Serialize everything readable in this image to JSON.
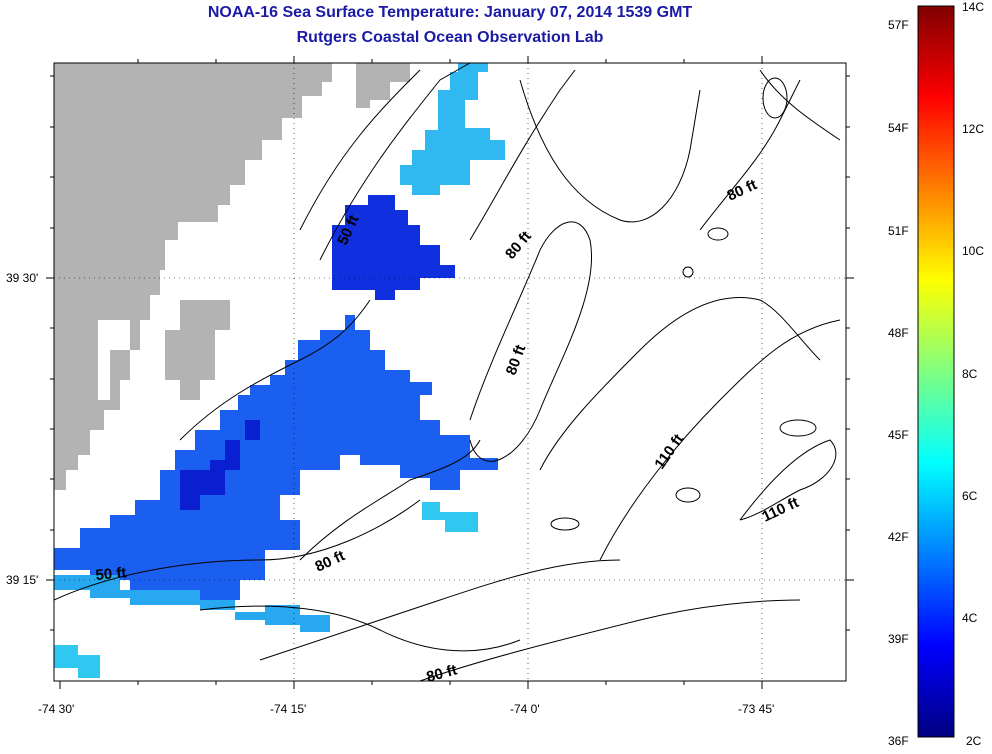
{
  "header": {
    "title": "NOAA-16 Sea Surface Temperature:  January 07, 2014 1539 GMT",
    "subtitle": "Rutgers Coastal Ocean Observation Lab"
  },
  "axes": {
    "x_ticks": [
      "-74 30'",
      "-74 15'",
      "-74 0'",
      "-73 45'"
    ],
    "y_ticks": [
      "39 30'",
      "39 15'"
    ]
  },
  "contour_labels": [
    "50 ft",
    "80 ft",
    "80 ft",
    "80 ft",
    "110 ft",
    "110 ft",
    "80 ft",
    "50 ft",
    "80 ft"
  ],
  "colorbar": {
    "fahrenheit": [
      "57F",
      "54F",
      "51F",
      "48F",
      "45F",
      "42F",
      "39F",
      "36F"
    ],
    "celsius": [
      "14C",
      "12C",
      "10C",
      "8C",
      "6C",
      "4C",
      "2C"
    ]
  },
  "colors": {
    "title": "#1a1aa6",
    "land": "#b3b3b3",
    "sst_cold": "#0000c8",
    "sst_mid": "#1e6ef0",
    "sst_warm": "#30c8f0"
  }
}
